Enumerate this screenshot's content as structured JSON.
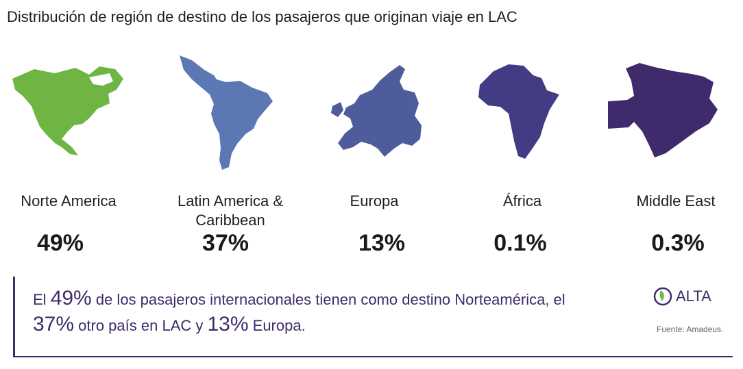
{
  "title": "Distribución de región de destino de los pasajeros que originan viaje en LAC",
  "chart_data": {
    "type": "table",
    "categories": [
      "Norte America",
      "Latin America & Caribbean",
      "Europa",
      "África",
      "Middle East"
    ],
    "value_labels": [
      "49%",
      "37%",
      "13%",
      "0.1%",
      "0.3%"
    ],
    "values": [
      49,
      37,
      13,
      0.1,
      0.3
    ],
    "colors": [
      "#6fb544",
      "#5b77b4",
      "#4e5c9b",
      "#423c85",
      "#3f2a6b"
    ]
  },
  "summary": {
    "p1": "El ",
    "n1": "49%",
    "p2": " de los pasajeros internacionales tienen como destino Norteamérica, el ",
    "n2": "37%",
    "p3": " otro país en LAC y ",
    "n3": "13%",
    "p4": " Europa."
  },
  "logo_text": "ALTA",
  "source": "Fuente: Amadeus."
}
